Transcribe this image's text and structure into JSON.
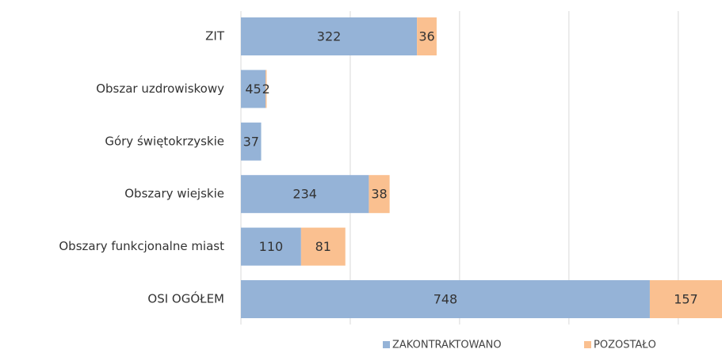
{
  "chart_data": {
    "type": "stacked_barh",
    "categories": [
      "ZIT",
      "Obszar uzdrowiskowy",
      "Góry świętokrzyskie",
      "Obszary wiejskie",
      "Obszary funkcjonalne miast",
      "OSI OGÓŁEM"
    ],
    "series": [
      {
        "name": "ZAKONTRAKTOWANO",
        "color": "#95b3d7",
        "values": [
          322,
          45,
          37,
          234,
          110,
          748
        ]
      },
      {
        "name": "POZOSTAŁO",
        "color": "#fac090",
        "values": [
          36,
          2,
          null,
          38,
          81,
          157
        ]
      }
    ],
    "xlim": [
      0,
      880
    ],
    "xticks": [
      0,
      200,
      400,
      600,
      800
    ],
    "grid": true,
    "legend": "bottom"
  }
}
